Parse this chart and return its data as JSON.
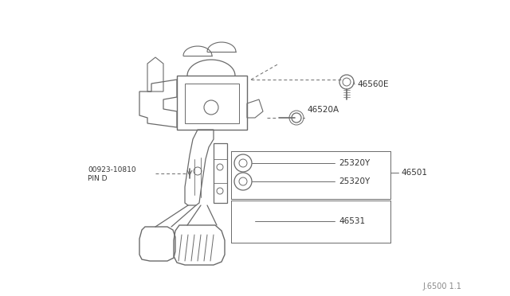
{
  "background_color": "#ffffff",
  "line_color": "#6a6a6a",
  "line_color_dark": "#444444",
  "text_color": "#333333",
  "fig_width": 6.4,
  "fig_height": 3.72,
  "dpi": 100,
  "footer_text": "J.6500 1.1",
  "label_46560E": "46560E",
  "label_46520A": "46520A",
  "label_25320Y": "25320Y",
  "label_46501": "46501",
  "label_46531": "46531",
  "label_00923": "00923-10810",
  "label_PIND": "PIN D"
}
